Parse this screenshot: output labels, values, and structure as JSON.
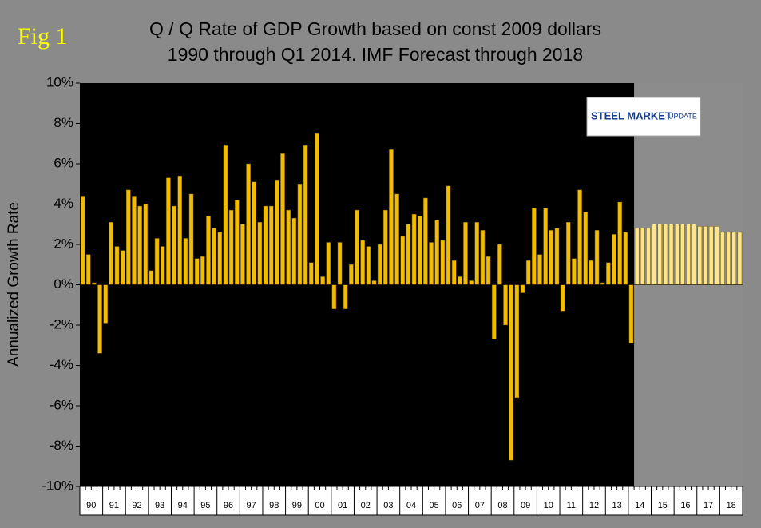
{
  "chart_data": {
    "type": "bar",
    "title": "Q / Q Rate of GDP Growth based on const 2009 dollars",
    "subtitle": "1990 through Q1 2014. IMF Forecast through 2018",
    "figure_label": "Fig 1",
    "logo_text": [
      "STEEL MARKET",
      "UPDATE"
    ],
    "y_label": "Annualized Growth Rate",
    "year_labels": [
      "90",
      "91",
      "92",
      "93",
      "94",
      "95",
      "96",
      "97",
      "98",
      "99",
      "00",
      "01",
      "02",
      "03",
      "04",
      "05",
      "06",
      "07",
      "08",
      "09",
      "10",
      "11",
      "12",
      "13",
      "14",
      "15",
      "16",
      "17",
      "18"
    ],
    "values": [
      4.4,
      1.5,
      0.1,
      -3.4,
      -1.9,
      3.1,
      1.9,
      1.7,
      4.7,
      4.4,
      3.9,
      4.0,
      0.7,
      2.3,
      1.9,
      5.3,
      3.9,
      5.4,
      2.3,
      4.5,
      1.3,
      1.4,
      3.4,
      2.8,
      2.6,
      6.9,
      3.7,
      4.2,
      3.0,
      6.0,
      5.1,
      3.1,
      3.9,
      3.9,
      5.2,
      6.5,
      3.7,
      3.3,
      5.0,
      6.9,
      1.1,
      7.5,
      0.4,
      2.1,
      -1.2,
      2.1,
      -1.2,
      1.0,
      3.7,
      2.2,
      1.9,
      0.2,
      2.0,
      3.7,
      6.7,
      4.5,
      2.4,
      3.0,
      3.5,
      3.4,
      4.3,
      2.1,
      3.2,
      2.2,
      4.9,
      1.2,
      0.4,
      3.1,
      0.2,
      3.1,
      2.7,
      1.4,
      -2.7,
      2.0,
      -2.0,
      -8.7,
      -5.6,
      -0.4,
      1.2,
      3.8,
      1.5,
      3.8,
      2.7,
      2.8,
      -1.3,
      3.1,
      1.3,
      4.7,
      3.6,
      1.2,
      2.7,
      0.1,
      1.1,
      2.5,
      4.1,
      2.6,
      -2.9
    ],
    "forecast_values": [
      2.8,
      2.8,
      2.8,
      3.0,
      3.0,
      3.0,
      3.0,
      3.0,
      3.0,
      3.0,
      3.0,
      2.9,
      2.9,
      2.9,
      2.9,
      2.6,
      2.6,
      2.6,
      2.6
    ],
    "color": "#f2bd00",
    "forecast_color": "#fde58c",
    "ylim": [
      -10,
      10
    ],
    "yticks": [
      {
        "value": -10,
        "label": "-10%"
      },
      {
        "value": -8,
        "label": "-8%"
      },
      {
        "value": -6,
        "label": "-6%"
      },
      {
        "value": -4,
        "label": "-4%"
      },
      {
        "value": -2,
        "label": "-2%"
      },
      {
        "value": 0,
        "label": "0%"
      },
      {
        "value": 2,
        "label": "2%"
      },
      {
        "value": 4,
        "label": "4%"
      },
      {
        "value": 6,
        "label": "6%"
      },
      {
        "value": 8,
        "label": "8%"
      },
      {
        "value": 10,
        "label": "10%"
      }
    ]
  }
}
